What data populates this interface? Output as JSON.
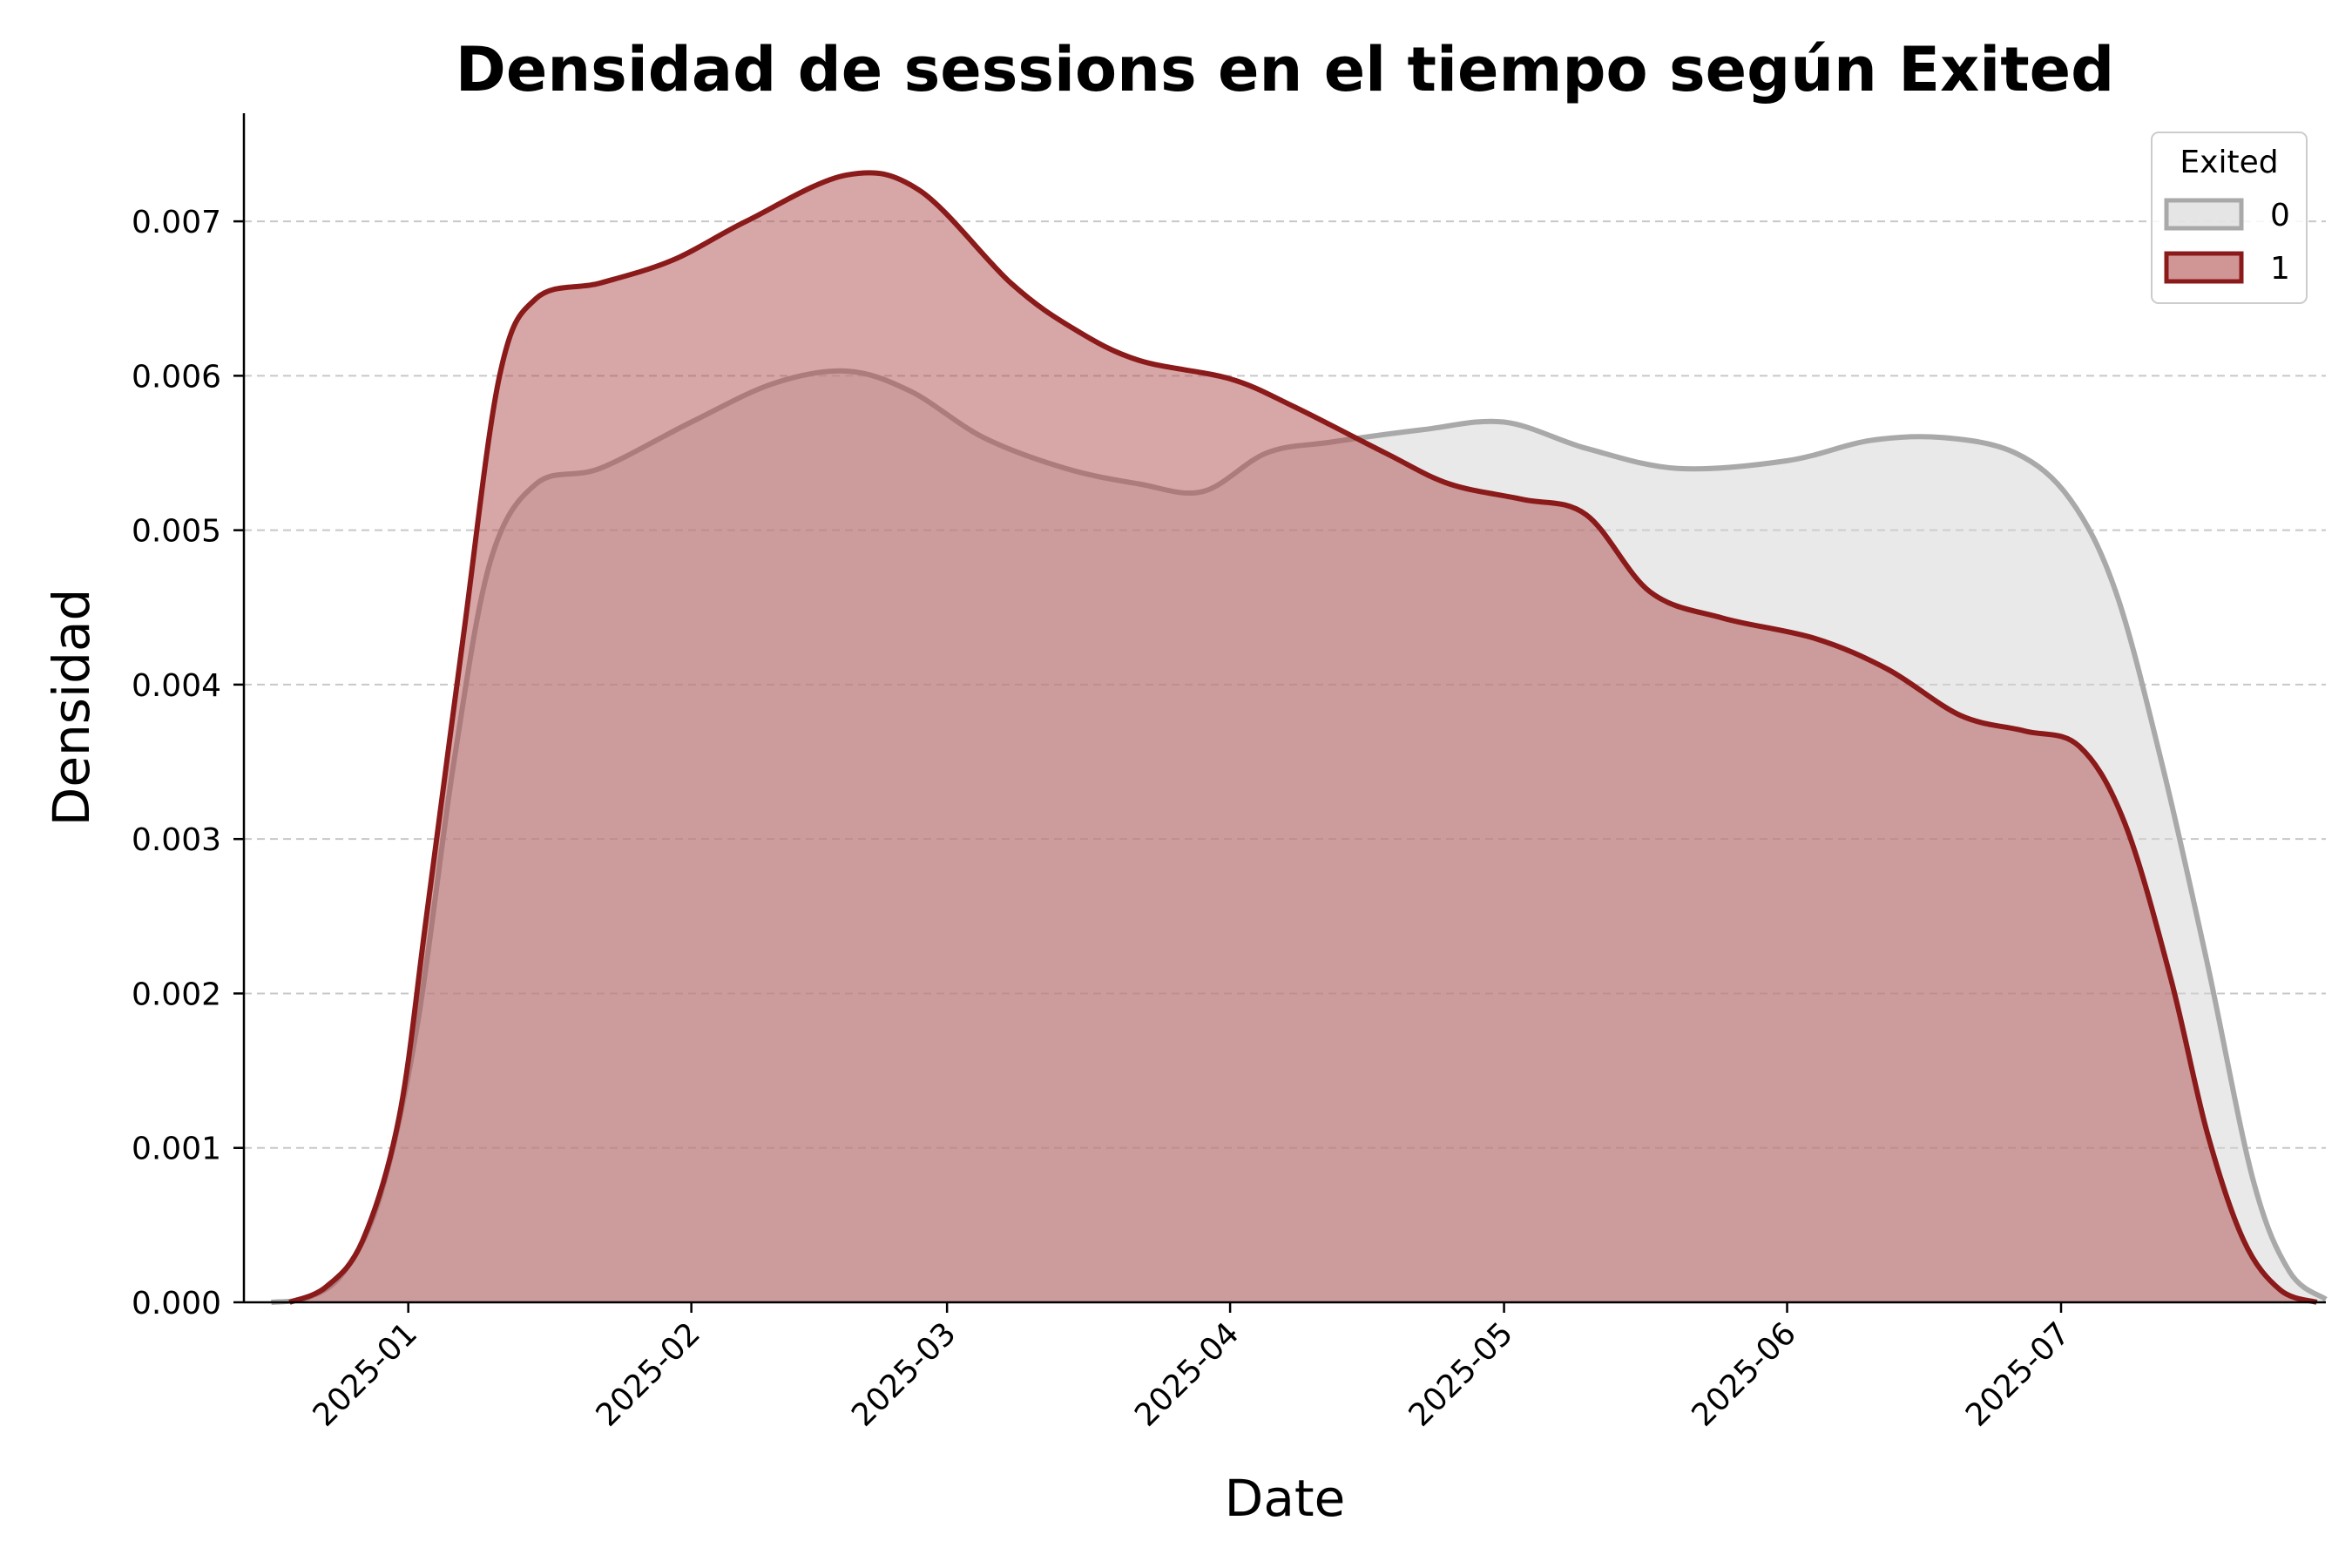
{
  "chart_data": {
    "type": "area",
    "title": "Densidad de sessions en el tiempo según Exited",
    "xlabel": "Date",
    "ylabel": "Densidad",
    "x_ticks": [
      "2025-01",
      "2025-02",
      "2025-03",
      "2025-04",
      "2025-05",
      "2025-06",
      "2025-07"
    ],
    "xlim": [
      "2024-12-14",
      "2025-07-30"
    ],
    "ylim": [
      0,
      0.0077
    ],
    "y_ticks": [
      "0.000",
      "0.001",
      "0.002",
      "0.003",
      "0.004",
      "0.005",
      "0.006",
      "0.007"
    ],
    "grid": "y-dashed",
    "legend": {
      "title": "Exited",
      "placement": "top-right"
    },
    "series": [
      {
        "name": "0",
        "color": "#a9a9a9",
        "fill": "#d3d3d3",
        "points": [
          [
            "2024-12-17",
            0.0
          ],
          [
            "2024-12-21",
            3e-05
          ],
          [
            "2024-12-25",
            0.0002
          ],
          [
            "2024-12-29",
            0.0007
          ],
          [
            "2025-01-02",
            0.0018
          ],
          [
            "2025-01-06",
            0.0035
          ],
          [
            "2025-01-10",
            0.0048
          ],
          [
            "2025-01-15",
            0.0053
          ],
          [
            "2025-01-22",
            0.0054
          ],
          [
            "2025-02-01",
            0.0057
          ],
          [
            "2025-02-10",
            0.00595
          ],
          [
            "2025-02-18",
            0.00603
          ],
          [
            "2025-02-25",
            0.0059
          ],
          [
            "2025-03-05",
            0.0056
          ],
          [
            "2025-03-14",
            0.0054
          ],
          [
            "2025-03-22",
            0.0053
          ],
          [
            "2025-03-29",
            0.00525
          ],
          [
            "2025-04-05",
            0.0055
          ],
          [
            "2025-04-12",
            0.00557
          ],
          [
            "2025-04-22",
            0.00565
          ],
          [
            "2025-05-01",
            0.0057
          ],
          [
            "2025-05-10",
            0.00553
          ],
          [
            "2025-05-20",
            0.0054
          ],
          [
            "2025-06-01",
            0.00545
          ],
          [
            "2025-06-10",
            0.00558
          ],
          [
            "2025-06-18",
            0.0056
          ],
          [
            "2025-06-26",
            0.0055
          ],
          [
            "2025-07-02",
            0.0052
          ],
          [
            "2025-07-07",
            0.0046
          ],
          [
            "2025-07-12",
            0.0035
          ],
          [
            "2025-07-17",
            0.0022
          ],
          [
            "2025-07-22",
            0.0008
          ],
          [
            "2025-07-26",
            0.0002
          ],
          [
            "2025-07-30",
            2e-05
          ]
        ]
      },
      {
        "name": "1",
        "color": "#8b1a1a",
        "fill": "#b05050",
        "points": [
          [
            "2024-12-19",
            0.0
          ],
          [
            "2024-12-23",
            0.0001
          ],
          [
            "2024-12-27",
            0.0004
          ],
          [
            "2024-12-31",
            0.0012
          ],
          [
            "2025-01-03",
            0.0025
          ],
          [
            "2025-01-07",
            0.0043
          ],
          [
            "2025-01-11",
            0.006
          ],
          [
            "2025-01-15",
            0.0065
          ],
          [
            "2025-01-22",
            0.0066
          ],
          [
            "2025-01-30",
            0.00675
          ],
          [
            "2025-02-07",
            0.007
          ],
          [
            "2025-02-18",
            0.0073
          ],
          [
            "2025-02-26",
            0.0072
          ],
          [
            "2025-03-08",
            0.0066
          ],
          [
            "2025-03-15",
            0.0063
          ],
          [
            "2025-03-22",
            0.0061
          ],
          [
            "2025-04-01",
            0.00598
          ],
          [
            "2025-04-08",
            0.0058
          ],
          [
            "2025-04-18",
            0.0055
          ],
          [
            "2025-04-25",
            0.0053
          ],
          [
            "2025-05-03",
            0.0052
          ],
          [
            "2025-05-10",
            0.0051
          ],
          [
            "2025-05-17",
            0.0046
          ],
          [
            "2025-05-25",
            0.00443
          ],
          [
            "2025-06-04",
            0.0043
          ],
          [
            "2025-06-12",
            0.0041
          ],
          [
            "2025-06-20",
            0.0038
          ],
          [
            "2025-06-27",
            0.0037
          ],
          [
            "2025-07-03",
            0.0036
          ],
          [
            "2025-07-08",
            0.0031
          ],
          [
            "2025-07-13",
            0.0021
          ],
          [
            "2025-07-17",
            0.0011
          ],
          [
            "2025-07-21",
            0.0004
          ],
          [
            "2025-07-25",
            8e-05
          ],
          [
            "2025-07-29",
            0.0
          ]
        ]
      }
    ]
  }
}
